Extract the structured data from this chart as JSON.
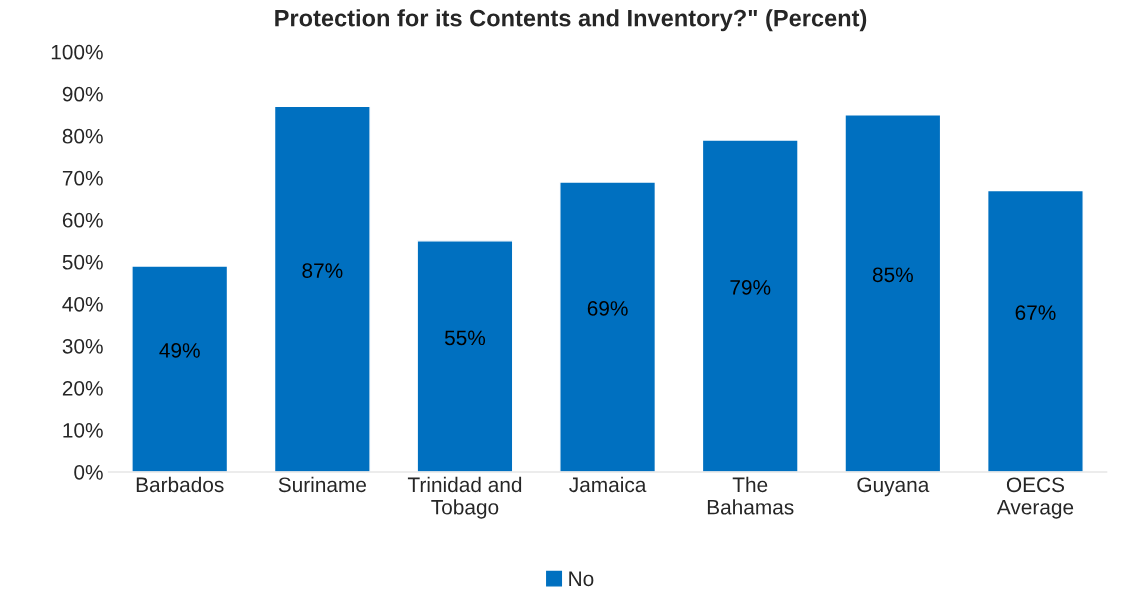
{
  "chart_data": {
    "type": "bar",
    "title": "Protection for its Contents and Inventory?\" (Percent)",
    "categories": [
      "Barbados",
      "Suriname",
      "Trinidad and\nTobago",
      "Jamaica",
      "The\nBahamas",
      "Guyana",
      "OECS\nAverage"
    ],
    "series": [
      {
        "name": "No",
        "color": "#0070c0",
        "values": [
          49,
          87,
          55,
          69,
          79,
          85,
          67
        ],
        "value_labels": [
          "49%",
          "87%",
          "55%",
          "69%",
          "79%",
          "85%",
          "67%"
        ]
      }
    ],
    "ylim": [
      0,
      100
    ],
    "yticks": [
      {
        "value": 0,
        "label": "0%"
      },
      {
        "value": 10,
        "label": "10%"
      },
      {
        "value": 20,
        "label": "20%"
      },
      {
        "value": 30,
        "label": "30%"
      },
      {
        "value": 40,
        "label": "40%"
      },
      {
        "value": 50,
        "label": "50%"
      },
      {
        "value": 60,
        "label": "60%"
      },
      {
        "value": 70,
        "label": "70%"
      },
      {
        "value": 80,
        "label": "80%"
      },
      {
        "value": 90,
        "label": "90%"
      },
      {
        "value": 100,
        "label": "100%"
      }
    ],
    "grid": false,
    "legend": "bottom"
  }
}
